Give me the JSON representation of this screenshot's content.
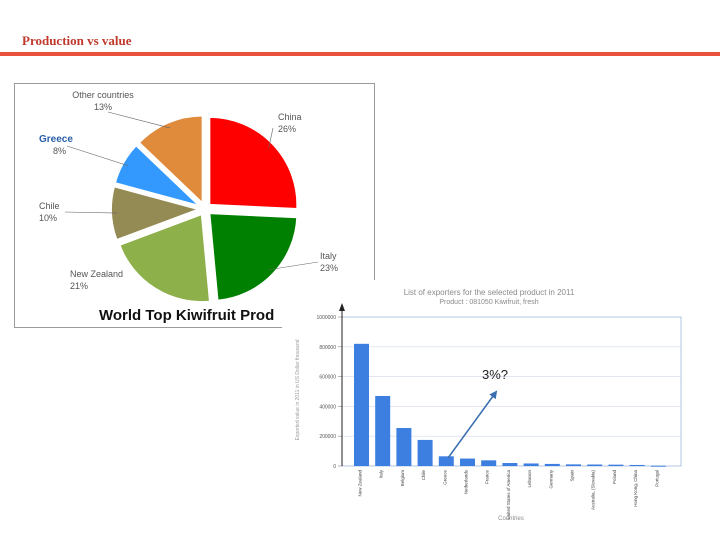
{
  "slide": {
    "title": "Production vs value"
  },
  "annotation": {
    "text": "3%?",
    "arrow_color": "#3a6fb0"
  },
  "chart_data": [
    {
      "type": "pie",
      "title": "World Top Kiwifruit Prod",
      "slices": [
        {
          "name": "China",
          "pct": 26,
          "label": "26%",
          "color": "#ff0000"
        },
        {
          "name": "Italy",
          "pct": 23,
          "label": "23%",
          "color": "#008000"
        },
        {
          "name": "New Zealand",
          "pct": 21,
          "label": "21%",
          "color": "#8db04a"
        },
        {
          "name": "Chile",
          "pct": 10,
          "label": "10%",
          "color": "#948a54"
        },
        {
          "name": "Greece",
          "pct": 8,
          "label": "8%",
          "color": "#3399ff"
        },
        {
          "name": "Other countries",
          "pct": 13,
          "label": "13%",
          "color": "#e08a3c"
        }
      ]
    },
    {
      "type": "bar",
      "title": "List of exporters for the selected product in 2011",
      "subtitle": "Product : 081050 Kiwifruit, fresh",
      "xlabel": "Countries",
      "ylabel": "Exported value in 2011 in US Dollar thousand",
      "ylim": [
        0,
        1000000
      ],
      "yticks": [
        0,
        200000,
        400000,
        600000,
        800000,
        1000000
      ],
      "ytick_labels": [
        "0",
        "200000",
        "400000",
        "600000",
        "800000",
        "1000000"
      ],
      "bar_color": "#3d7fe0",
      "categories": [
        "New Zealand",
        "Italy",
        "Belgium",
        "Chile",
        "Greece",
        "Netherlands",
        "France",
        "United States of America",
        "Lebanon",
        "Germany",
        "Spain",
        "Australia, (Slovakia)",
        "Poland",
        "Hong Kong, China",
        "Portugal"
      ],
      "values": [
        820000,
        470000,
        255000,
        175000,
        65000,
        50000,
        38000,
        20000,
        17000,
        14000,
        11000,
        10000,
        9000,
        7000,
        2000
      ]
    }
  ]
}
